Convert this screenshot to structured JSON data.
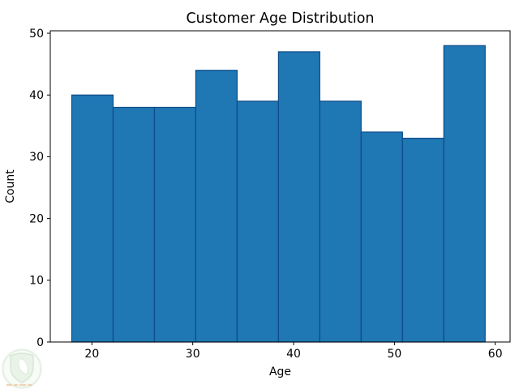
{
  "figure": {
    "background": "#ffffff"
  },
  "chart_data": {
    "type": "bar",
    "subtype": "histogram",
    "title": "Customer Age Distribution",
    "xlabel": "Age",
    "ylabel": "Count",
    "bin_edges": [
      18.0,
      22.1,
      26.2,
      30.3,
      34.4,
      38.5,
      42.6,
      46.7,
      50.8,
      54.9,
      59.0
    ],
    "counts": [
      40,
      38,
      38,
      44,
      39,
      47,
      39,
      34,
      33,
      48
    ],
    "xticks": [
      20,
      30,
      40,
      50,
      60
    ],
    "yticks": [
      0,
      10,
      20,
      30,
      40,
      50
    ],
    "xlim": [
      15.87,
      61.47
    ],
    "ylim": [
      0,
      50.4
    ],
    "grid": false,
    "legend": null,
    "bar_fill": "#1f77b4",
    "bar_edge": "#0e4c8a",
    "axis_color": "#000000"
  },
  "watermark": {
    "icon": "leaf-shield-logo",
    "ring_color": "#cfe5cc",
    "shield_color": "#d7e9d3",
    "shield_stroke": "#aed2a9",
    "mark_color": "#e2a868"
  }
}
